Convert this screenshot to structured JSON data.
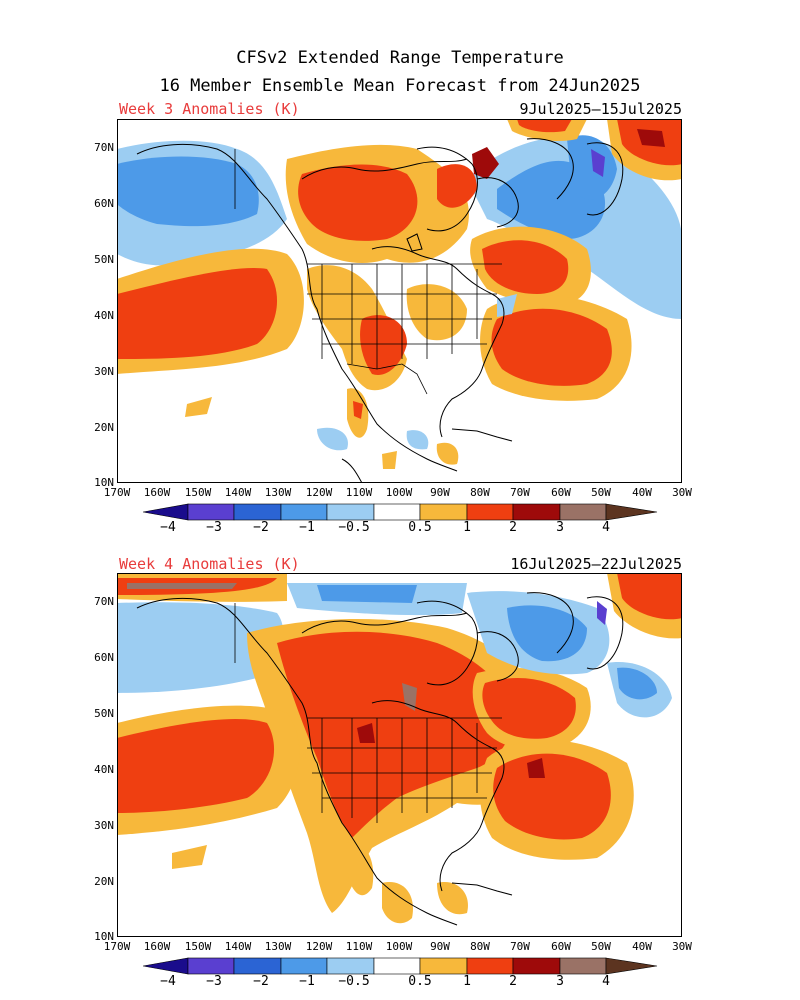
{
  "title_line1": "CFSv2 Extended Range Temperature",
  "title_line2": "16 Member Ensemble Mean Forecast from 24Jun2025",
  "panels": [
    {
      "label": "Week 3 Anomalies (K)",
      "dates": "9Jul2025–15Jul2025"
    },
    {
      "label": "Week 4 Anomalies (K)",
      "dates": "16Jul2025–22Jul2025"
    }
  ],
  "lat_ticks": [
    "70N",
    "60N",
    "50N",
    "40N",
    "30N",
    "20N",
    "10N"
  ],
  "lon_ticks": [
    "170W",
    "160W",
    "150W",
    "140W",
    "130W",
    "120W",
    "110W",
    "100W",
    "90W",
    "80W",
    "70W",
    "60W",
    "50W",
    "40W",
    "30W"
  ],
  "colorbar": {
    "labels": [
      "−4",
      "−3",
      "−2",
      "−1",
      "−0.5",
      "0.5",
      "1",
      "2",
      "3",
      "4"
    ],
    "colors": [
      "#1a0c8c",
      "#5a3fd0",
      "#2b64d4",
      "#4d9ae8",
      "#9ccdf2",
      "#ffffff",
      "#f7b83b",
      "#ef3f11",
      "#9e0a0a",
      "#9a7266",
      "#5c3420"
    ]
  },
  "palette": {
    "light_blue": "#9ccdf2",
    "blue": "#4d9ae8",
    "dark_blue": "#2b64d4",
    "indigo": "#5a3fd0",
    "orange": "#f7b83b",
    "red": "#ef3f11",
    "dark_red": "#9e0a0a",
    "brown": "#9a7266",
    "title_red": "#e83c3c"
  }
}
